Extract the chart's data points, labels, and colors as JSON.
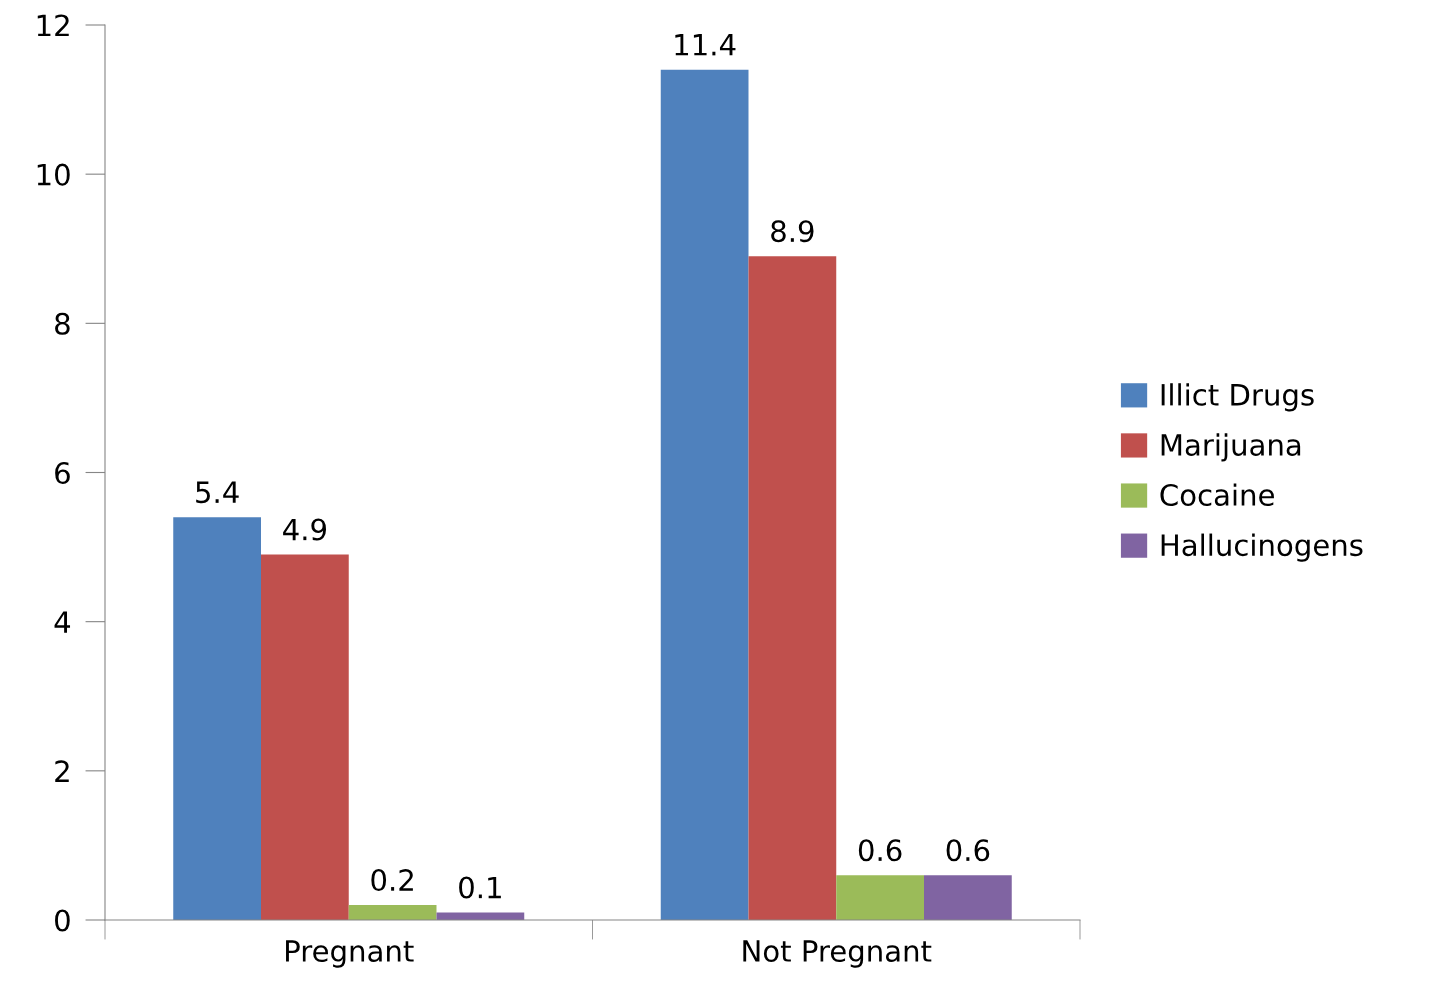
{
  "chart_data": {
    "type": "bar",
    "categories": [
      "Pregnant",
      "Not Pregnant"
    ],
    "series": [
      {
        "name": "Illict Drugs",
        "color": "#4f81bd",
        "values": [
          5.4,
          11.4
        ]
      },
      {
        "name": "Marijuana",
        "color": "#c0504d",
        "values": [
          4.9,
          8.9
        ]
      },
      {
        "name": "Cocaine",
        "color": "#9bbb59",
        "values": [
          0.2,
          0.6
        ]
      },
      {
        "name": "Hallucinogens",
        "color": "#8064a2",
        "values": [
          0.1,
          0.6
        ]
      }
    ],
    "ylim": [
      0,
      12
    ],
    "yticks": [
      0,
      2,
      4,
      6,
      8,
      10,
      12
    ],
    "grid": false,
    "legend": "right",
    "data_labels": true
  }
}
